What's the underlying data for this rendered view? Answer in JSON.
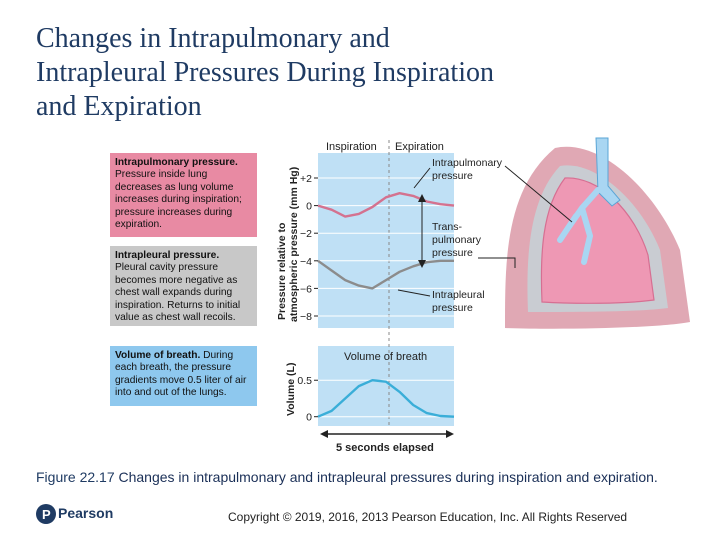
{
  "slide": {
    "title_lines": [
      "Changes in Intrapulmonary and",
      "Intrapleural Pressures During Inspiration",
      "and Expiration"
    ],
    "caption_label": "Figure 22.17",
    "caption_text": "Changes in intrapulmonary and intrapleural pressures during inspiration and expiration.",
    "copyright": "Copyright © 2019, 2016, 2013 Pearson Education, Inc. All Rights Reserved",
    "logo_text": "Pearson",
    "logo_glyph": "P"
  },
  "boxes": {
    "intrapulmonary": {
      "heading": "Intrapulmonary pressure.",
      "text": "Pressure inside lung decreases as lung volume increases during inspiration; pressure increases during expiration.",
      "color": "#e88aa3"
    },
    "intrapleural": {
      "heading": "Intrapleural pressure.",
      "text": "Pleural cavity pressure becomes more negative as chest wall expands during inspiration. Returns to initial value as chest wall recoils.",
      "color": "#c8c8c8"
    },
    "volume": {
      "heading": "Volume of breath.",
      "text": "During each breath, the pressure gradients move 0.5 liter of air into and out of the lungs.",
      "color": "#8ec8ee"
    }
  },
  "chart_data": [
    {
      "type": "line",
      "title": "",
      "ylabel": "Pressure relative to atmospheric pressure (mm Hg)",
      "ylim": [
        -8,
        2
      ],
      "yticks": [
        "+2",
        "0",
        "−2",
        "−4",
        "−6",
        "−8"
      ],
      "ytick_values": [
        2,
        0,
        -2,
        -4,
        -6,
        -8
      ],
      "phases": [
        "Inspiration",
        "Expiration"
      ],
      "x": [
        0,
        0.5,
        1,
        1.5,
        2,
        2.5,
        3,
        3.5,
        4,
        4.5,
        5
      ],
      "series": [
        {
          "name": "Intrapulmonary pressure",
          "color": "#d4728f",
          "values": [
            0,
            -0.3,
            -0.8,
            -0.6,
            -0.1,
            0.6,
            0.9,
            0.7,
            0.3,
            0.1,
            0
          ]
        },
        {
          "name": "Intrapleural pressure",
          "color": "#8c8c8c",
          "values": [
            -4,
            -4.7,
            -5.4,
            -5.8,
            -6.0,
            -5.4,
            -4.8,
            -4.4,
            -4.1,
            -4.0,
            -4.0
          ]
        }
      ],
      "annotations": [
        "Intrapulmonary pressure",
        "Trans-pulmonary pressure",
        "Intrapleural pressure"
      ]
    },
    {
      "type": "line",
      "title": "Volume of breath",
      "ylabel": "Volume (L)",
      "ylim": [
        -0.1,
        0.75
      ],
      "yticks": [
        "0.5",
        "0"
      ],
      "ytick_values": [
        0.5,
        0
      ],
      "x": [
        0,
        0.5,
        1,
        1.5,
        2,
        2.5,
        3,
        3.5,
        4,
        4.5,
        5
      ],
      "series": [
        {
          "name": "",
          "color": "#3aaed8",
          "values": [
            0,
            0.08,
            0.25,
            0.42,
            0.5,
            0.48,
            0.34,
            0.16,
            0.05,
            0.01,
            0
          ]
        }
      ],
      "xlabel": "5 seconds elapsed"
    }
  ]
}
